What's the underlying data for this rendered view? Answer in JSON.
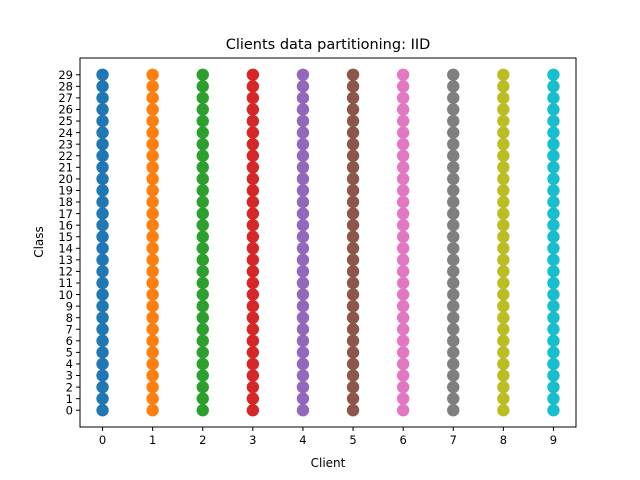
{
  "chart_data": {
    "type": "scatter",
    "title": "Clients data partitioning: IID",
    "xlabel": "Client",
    "ylabel": "Class",
    "x_ticks": [
      0,
      1,
      2,
      3,
      4,
      5,
      6,
      7,
      8,
      9
    ],
    "y_ticks": [
      0,
      1,
      2,
      3,
      4,
      5,
      6,
      7,
      8,
      9,
      10,
      11,
      12,
      13,
      14,
      15,
      16,
      17,
      18,
      19,
      20,
      21,
      22,
      23,
      24,
      25,
      26,
      27,
      28,
      29
    ],
    "xlim": [
      -0.45,
      9.45
    ],
    "ylim": [
      -1.45,
      30.45
    ],
    "grid": false,
    "series": [
      {
        "client": 0,
        "color": "#1f77b4",
        "classes": [
          0,
          1,
          2,
          3,
          4,
          5,
          6,
          7,
          8,
          9,
          10,
          11,
          12,
          13,
          14,
          15,
          16,
          17,
          18,
          19,
          20,
          21,
          22,
          23,
          24,
          25,
          26,
          27,
          28,
          29
        ]
      },
      {
        "client": 1,
        "color": "#ff7f0e",
        "classes": [
          0,
          1,
          2,
          3,
          4,
          5,
          6,
          7,
          8,
          9,
          10,
          11,
          12,
          13,
          14,
          15,
          16,
          17,
          18,
          19,
          20,
          21,
          22,
          23,
          24,
          25,
          26,
          27,
          28,
          29
        ]
      },
      {
        "client": 2,
        "color": "#2ca02c",
        "classes": [
          0,
          1,
          2,
          3,
          4,
          5,
          6,
          7,
          8,
          9,
          10,
          11,
          12,
          13,
          14,
          15,
          16,
          17,
          18,
          19,
          20,
          21,
          22,
          23,
          24,
          25,
          26,
          27,
          28,
          29
        ]
      },
      {
        "client": 3,
        "color": "#d62728",
        "classes": [
          0,
          1,
          2,
          3,
          4,
          5,
          6,
          7,
          8,
          9,
          10,
          11,
          12,
          13,
          14,
          15,
          16,
          17,
          18,
          19,
          20,
          21,
          22,
          23,
          24,
          25,
          26,
          27,
          28,
          29
        ]
      },
      {
        "client": 4,
        "color": "#9467bd",
        "classes": [
          0,
          1,
          2,
          3,
          4,
          5,
          6,
          7,
          8,
          9,
          10,
          11,
          12,
          13,
          14,
          15,
          16,
          17,
          18,
          19,
          20,
          21,
          22,
          23,
          24,
          25,
          26,
          27,
          28,
          29
        ]
      },
      {
        "client": 5,
        "color": "#8c564b",
        "classes": [
          0,
          1,
          2,
          3,
          4,
          5,
          6,
          7,
          8,
          9,
          10,
          11,
          12,
          13,
          14,
          15,
          16,
          17,
          18,
          19,
          20,
          21,
          22,
          23,
          24,
          25,
          26,
          27,
          28,
          29
        ]
      },
      {
        "client": 6,
        "color": "#e377c2",
        "classes": [
          0,
          1,
          2,
          3,
          4,
          5,
          6,
          7,
          8,
          9,
          10,
          11,
          12,
          13,
          14,
          15,
          16,
          17,
          18,
          19,
          20,
          21,
          22,
          23,
          24,
          25,
          26,
          27,
          28,
          29
        ]
      },
      {
        "client": 7,
        "color": "#7f7f7f",
        "classes": [
          0,
          1,
          2,
          3,
          4,
          5,
          6,
          7,
          8,
          9,
          10,
          11,
          12,
          13,
          14,
          15,
          16,
          17,
          18,
          19,
          20,
          21,
          22,
          23,
          24,
          25,
          26,
          27,
          28,
          29
        ]
      },
      {
        "client": 8,
        "color": "#bcbd22",
        "classes": [
          0,
          1,
          2,
          3,
          4,
          5,
          6,
          7,
          8,
          9,
          10,
          11,
          12,
          13,
          14,
          15,
          16,
          17,
          18,
          19,
          20,
          21,
          22,
          23,
          24,
          25,
          26,
          27,
          28,
          29
        ]
      },
      {
        "client": 9,
        "color": "#17becf",
        "classes": [
          0,
          1,
          2,
          3,
          4,
          5,
          6,
          7,
          8,
          9,
          10,
          11,
          12,
          13,
          14,
          15,
          16,
          17,
          18,
          19,
          20,
          21,
          22,
          23,
          24,
          25,
          26,
          27,
          28,
          29
        ]
      }
    ]
  }
}
